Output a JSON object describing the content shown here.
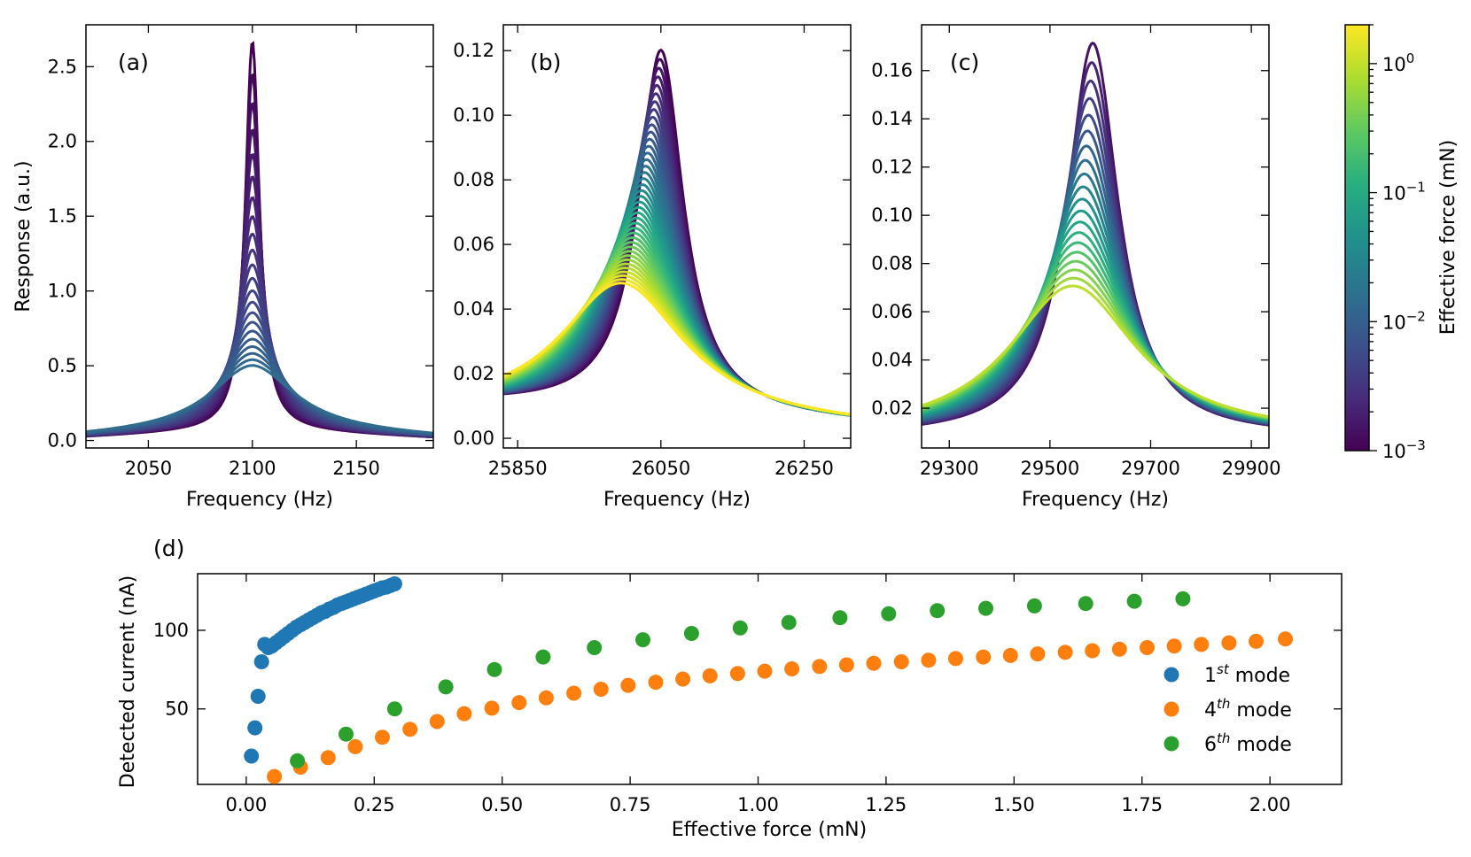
{
  "colors": {
    "mode1": "#1f77b4",
    "mode4": "#ff7f0e",
    "mode6": "#2ca02c",
    "colormap": "viridis"
  },
  "colorbar": {
    "label": "Effective force (mN)",
    "scale": "log",
    "range": [
      0.001,
      2.0
    ],
    "ticks": [
      {
        "value": 0.001,
        "base": "10",
        "exp": "−3"
      },
      {
        "value": 0.01,
        "base": "10",
        "exp": "−2"
      },
      {
        "value": 0.1,
        "base": "10",
        "exp": "−1"
      },
      {
        "value": 1,
        "base": "10",
        "exp": "0"
      }
    ]
  },
  "chart_data": [
    {
      "panel": "(a)",
      "type": "line",
      "description_of_series": "family of resonance curves, color by effective force (viridis, log scale)",
      "xlabel": "Frequency (Hz)",
      "ylabel": "Response (a.u.)",
      "xlim": [
        2020,
        2187
      ],
      "ylim": [
        -0.05,
        2.78
      ],
      "xticks": [
        2050,
        2100,
        2150
      ],
      "xticklabels": [
        "2050",
        "2100",
        "2150"
      ],
      "yticks": [
        0.0,
        0.5,
        1.0,
        1.5,
        2.0,
        2.5
      ],
      "yticklabels": [
        "0.0",
        "0.5",
        "1.0",
        "1.5",
        "2.0",
        "2.5"
      ],
      "resonance": {
        "f0": 2100,
        "peak_low_force": 2.65,
        "peak_high_force": 0.44,
        "baseline": 0.08,
        "n_curves": 22
      }
    },
    {
      "panel": "(b)",
      "type": "line",
      "xlabel": "Frequency (Hz)",
      "ylabel": "",
      "xlim": [
        25830,
        26315
      ],
      "ylim": [
        -0.003,
        0.128
      ],
      "xticks": [
        25850,
        26050,
        26250
      ],
      "xticklabels": [
        "25850",
        "26050",
        "26250"
      ],
      "yticks": [
        0.0,
        0.02,
        0.04,
        0.06,
        0.08,
        0.1,
        0.12
      ],
      "yticklabels": [
        "0.00",
        "0.02",
        "0.04",
        "0.06",
        "0.08",
        "0.10",
        "0.12"
      ],
      "resonance": {
        "f0": 26050,
        "peak_low_force": 0.122,
        "peak_high_force": 0.046,
        "f_shift_high_force": 25995,
        "n_curves": 40
      }
    },
    {
      "panel": "(c)",
      "type": "line",
      "xlabel": "Frequency (Hz)",
      "ylabel": "",
      "xlim": [
        29245,
        29935
      ],
      "ylim": [
        0.0035,
        0.179
      ],
      "xticks": [
        29300,
        29500,
        29700,
        29900
      ],
      "xticklabels": [
        "29300",
        "29500",
        "29700",
        "29900"
      ],
      "yticks": [
        0.02,
        0.04,
        0.06,
        0.08,
        0.1,
        0.12,
        0.14,
        0.16
      ],
      "yticklabels": [
        "0.02",
        "0.04",
        "0.06",
        "0.08",
        "0.10",
        "0.12",
        "0.14",
        "0.16"
      ],
      "resonance": {
        "f0": 29585,
        "peak_low_force": 0.172,
        "peak_high_force": 0.066,
        "f_shift_high_force": 29545,
        "n_curves": 20
      }
    },
    {
      "panel": "(d)",
      "type": "scatter",
      "xlabel": "Effective force (mN)",
      "ylabel": "Detected current (nA)",
      "xlim": [
        -0.095,
        2.14
      ],
      "ylim": [
        2,
        136
      ],
      "xticks": [
        0.0,
        0.25,
        0.5,
        0.75,
        1.0,
        1.25,
        1.5,
        1.75,
        2.0
      ],
      "xticklabels": [
        "0.00",
        "0.25",
        "0.50",
        "0.75",
        "1.00",
        "1.25",
        "1.50",
        "1.75",
        "2.00"
      ],
      "yticks": [
        50,
        100
      ],
      "yticklabels": [
        "50",
        "100"
      ],
      "legend_position": "lower-right",
      "series": [
        {
          "name_base": "1",
          "name_sup": "st",
          "name_rest": " mode",
          "color": "#1f77b4",
          "x": [
            0.01,
            0.017,
            0.023,
            0.03,
            0.036,
            0.043,
            0.05,
            0.058,
            0.066,
            0.074,
            0.082,
            0.09,
            0.098,
            0.106,
            0.114,
            0.122,
            0.13,
            0.138,
            0.146,
            0.154,
            0.162,
            0.17,
            0.178,
            0.186,
            0.194,
            0.202,
            0.21,
            0.218,
            0.226,
            0.234,
            0.242,
            0.25,
            0.258,
            0.266,
            0.274,
            0.282,
            0.29
          ],
          "y": [
            20,
            38,
            58,
            80,
            91,
            89,
            90,
            92,
            94,
            96,
            98,
            100,
            102,
            103.5,
            105,
            106.5,
            108,
            109.5,
            111,
            112,
            113.5,
            114.5,
            116,
            117,
            118,
            119,
            120,
            121,
            122,
            123,
            124,
            125,
            126,
            127,
            127.5,
            128.5,
            129.5
          ]
        },
        {
          "name_base": "4",
          "name_sup": "th",
          "name_rest": " mode",
          "color": "#ff7f0e",
          "x": [
            0.055,
            0.106,
            0.16,
            0.213,
            0.266,
            0.32,
            0.373,
            0.426,
            0.48,
            0.533,
            0.586,
            0.64,
            0.693,
            0.746,
            0.8,
            0.853,
            0.906,
            0.96,
            1.013,
            1.066,
            1.12,
            1.173,
            1.226,
            1.28,
            1.333,
            1.386,
            1.44,
            1.493,
            1.546,
            1.6,
            1.653,
            1.706,
            1.76,
            1.813,
            1.866,
            1.92,
            1.973,
            2.03
          ],
          "y": [
            7,
            13,
            19,
            26,
            32,
            37,
            42,
            47,
            50.5,
            54,
            57,
            60,
            62.5,
            65,
            67,
            69,
            71,
            72.5,
            74,
            75.5,
            77,
            78,
            79,
            80,
            81,
            82,
            83,
            84,
            85,
            86,
            87,
            88,
            89,
            90,
            91,
            92,
            93,
            94.5
          ]
        },
        {
          "name_base": "6",
          "name_sup": "th",
          "name_rest": " mode",
          "color": "#2ca02c",
          "x": [
            0.1,
            0.195,
            0.29,
            0.39,
            0.485,
            0.58,
            0.68,
            0.775,
            0.87,
            0.965,
            1.06,
            1.16,
            1.255,
            1.35,
            1.445,
            1.54,
            1.64,
            1.735,
            1.83
          ],
          "y": [
            17,
            34,
            50,
            64,
            75,
            83,
            89,
            94,
            98,
            101.5,
            105,
            108,
            110.5,
            112.5,
            114,
            115.5,
            117,
            118.5,
            120
          ]
        }
      ]
    }
  ]
}
